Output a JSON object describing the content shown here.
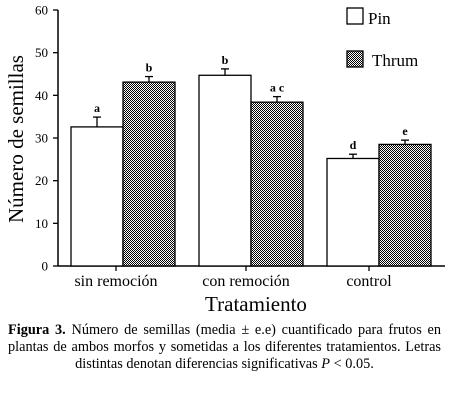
{
  "chart_data": {
    "type": "bar",
    "categories": [
      "sin remoción",
      "con remoción",
      "control"
    ],
    "series": [
      {
        "name": "Pin",
        "values": [
          32.6,
          44.7,
          25.2
        ],
        "errors": [
          2.3,
          1.5,
          1.0
        ],
        "letters": [
          "a",
          "b",
          "d"
        ],
        "color": "#ffffff"
      },
      {
        "name": "Thrum",
        "values": [
          43.1,
          38.4,
          28.5
        ],
        "errors": [
          1.3,
          1.3,
          1.0
        ],
        "letters": [
          "b",
          "a c",
          "e"
        ],
        "color": "#a9a9a9"
      }
    ],
    "xlabel": "Tratamiento",
    "ylabel": "Número de semillas",
    "ylim": [
      0,
      60
    ],
    "yticks": [
      0,
      10,
      20,
      30,
      40,
      50,
      60
    ],
    "legend": "top-right",
    "grid": false
  },
  "caption": {
    "label": "Figura 3.",
    "text": " Número de semillas (media ± e.e) cuantificado para frutos en plantas de ambos morfos y sometidas a los diferentes tratamientos. Letras distintas denotan diferencias significativas ",
    "p_symbol": "P",
    "p_rest": " < 0.05."
  }
}
